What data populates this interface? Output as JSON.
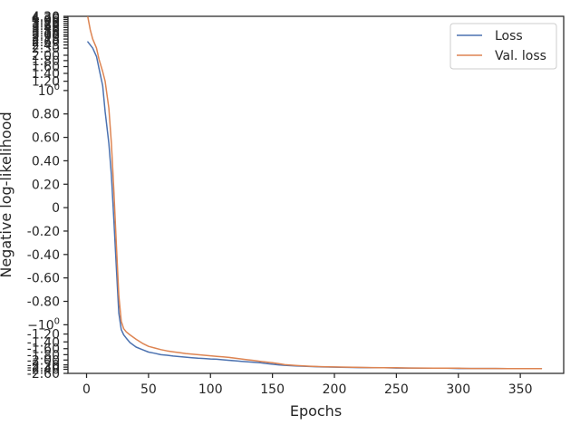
{
  "chart_data": {
    "type": "line",
    "xlabel": "Epochs",
    "ylabel": "Negative log-likelihood",
    "xlim": [
      -15,
      385
    ],
    "ylim": [
      -2.6,
      4.3
    ],
    "y_scale": "symlog",
    "linthresh": 1,
    "legend_position": "top-right",
    "grid": false,
    "x_ticks": [
      0,
      50,
      100,
      150,
      200,
      250,
      300,
      350
    ],
    "x_tick_labels": [
      "0",
      "50",
      "100",
      "150",
      "200",
      "250",
      "300",
      "350"
    ],
    "y_ticks": [
      {
        "value": 4.3,
        "label": "4.30"
      },
      {
        "value": 4.2,
        "label": "4.20"
      },
      {
        "value": 4.05,
        "label": "4.05"
      },
      {
        "value": 3.9,
        "label": "3.90"
      },
      {
        "value": 3.75,
        "label": "3.75"
      },
      {
        "value": 3.6,
        "label": "3.60"
      },
      {
        "value": 3.45,
        "label": "3.45"
      },
      {
        "value": 3.3,
        "label": "3.30"
      },
      {
        "value": 3.15,
        "label": "3.15"
      },
      {
        "value": 3.0,
        "label": "3.00"
      },
      {
        "value": 2.9,
        "label": "2.90"
      },
      {
        "value": 2.75,
        "label": "2.75"
      },
      {
        "value": 2.6,
        "label": "2.60"
      },
      {
        "value": 2.45,
        "label": "2.45"
      },
      {
        "value": 2.3,
        "label": "2.30"
      },
      {
        "value": 2.0,
        "label": "2.00"
      },
      {
        "value": 1.8,
        "label": "1.80"
      },
      {
        "value": 1.6,
        "label": "1.60"
      },
      {
        "value": 1.4,
        "label": "1.40"
      },
      {
        "value": 1.2,
        "label": "1.20"
      },
      {
        "value": 1.0,
        "label": "10",
        "sup": "0"
      },
      {
        "value": 0.8,
        "label": "0.80"
      },
      {
        "value": 0.6,
        "label": "0.60"
      },
      {
        "value": 0.4,
        "label": "0.40"
      },
      {
        "value": 0.2,
        "label": "0.20"
      },
      {
        "value": 0,
        "label": "0"
      },
      {
        "value": -0.2,
        "label": "-0.20"
      },
      {
        "value": -0.4,
        "label": "-0.40"
      },
      {
        "value": -0.6,
        "label": "-0.60"
      },
      {
        "value": -0.8,
        "label": "-0.80"
      },
      {
        "value": -1.0,
        "label": "−10",
        "sup": "0"
      },
      {
        "value": -1.2,
        "label": "-1.20"
      },
      {
        "value": -1.4,
        "label": "-1.40"
      },
      {
        "value": -1.6,
        "label": "-1.60"
      },
      {
        "value": -1.8,
        "label": "-1.80"
      },
      {
        "value": -2.0,
        "label": "-2.00"
      },
      {
        "value": -2.2,
        "label": "-2.20"
      },
      {
        "value": -2.3,
        "label": "-2.30"
      },
      {
        "value": -2.4,
        "label": "-2.40"
      },
      {
        "value": -2.6,
        "label": "-2.60"
      }
    ],
    "series": [
      {
        "name": "Loss",
        "color": "#4c72b0",
        "x": [
          1,
          5,
          8,
          10,
          13,
          15,
          18,
          20,
          22,
          24,
          26,
          28,
          30,
          32,
          35,
          40,
          45,
          50,
          55,
          60,
          65,
          70,
          75,
          80,
          85,
          90,
          95,
          100,
          105,
          110,
          115,
          120,
          125,
          130,
          135,
          140,
          145,
          150,
          155,
          160,
          170,
          180,
          190,
          200,
          210,
          220,
          230,
          240,
          250,
          260,
          270,
          280,
          290,
          300,
          310,
          320,
          330,
          340,
          350,
          360,
          367
        ],
        "y": [
          2.6,
          2.3,
          1.95,
          1.55,
          1.1,
          0.82,
          0.55,
          0.28,
          -0.1,
          -0.5,
          -0.9,
          -1.1,
          -1.22,
          -1.3,
          -1.42,
          -1.55,
          -1.63,
          -1.71,
          -1.75,
          -1.8,
          -1.82,
          -1.85,
          -1.87,
          -1.89,
          -1.91,
          -1.93,
          -1.94,
          -1.96,
          -1.97,
          -1.99,
          -2.01,
          -2.03,
          -2.05,
          -2.07,
          -2.09,
          -2.11,
          -2.14,
          -2.17,
          -2.2,
          -2.22,
          -2.25,
          -2.27,
          -2.29,
          -2.3,
          -2.31,
          -2.32,
          -2.33,
          -2.33,
          -2.34,
          -2.34,
          -2.35,
          -2.35,
          -2.35,
          -2.36,
          -2.36,
          -2.36,
          -2.36,
          -2.37,
          -2.37,
          -2.37,
          -2.37
        ]
      },
      {
        "name": "Val. loss",
        "color": "#dd8452",
        "x": [
          1,
          3,
          5,
          8,
          10,
          13,
          15,
          18,
          20,
          22,
          24,
          26,
          28,
          30,
          32,
          35,
          40,
          45,
          50,
          55,
          60,
          65,
          70,
          75,
          80,
          85,
          90,
          95,
          100,
          105,
          110,
          115,
          120,
          125,
          130,
          135,
          140,
          145,
          150,
          155,
          160,
          170,
          180,
          190,
          200,
          210,
          220,
          230,
          240,
          250,
          260,
          270,
          280,
          290,
          300,
          310,
          320,
          330,
          340,
          350,
          360,
          367
        ],
        "y": [
          4.25,
          3.3,
          2.75,
          2.3,
          1.85,
          1.45,
          1.2,
          0.85,
          0.55,
          0.15,
          -0.3,
          -0.75,
          -0.97,
          -1.08,
          -1.15,
          -1.22,
          -1.33,
          -1.44,
          -1.53,
          -1.58,
          -1.63,
          -1.67,
          -1.7,
          -1.73,
          -1.76,
          -1.78,
          -1.8,
          -1.82,
          -1.84,
          -1.86,
          -1.88,
          -1.9,
          -1.93,
          -1.96,
          -1.99,
          -2.02,
          -2.05,
          -2.08,
          -2.11,
          -2.15,
          -2.19,
          -2.23,
          -2.26,
          -2.28,
          -2.29,
          -2.3,
          -2.31,
          -2.32,
          -2.33,
          -2.33,
          -2.34,
          -2.34,
          -2.35,
          -2.35,
          -2.35,
          -2.36,
          -2.36,
          -2.36,
          -2.37,
          -2.37,
          -2.37,
          -2.37
        ]
      }
    ]
  }
}
